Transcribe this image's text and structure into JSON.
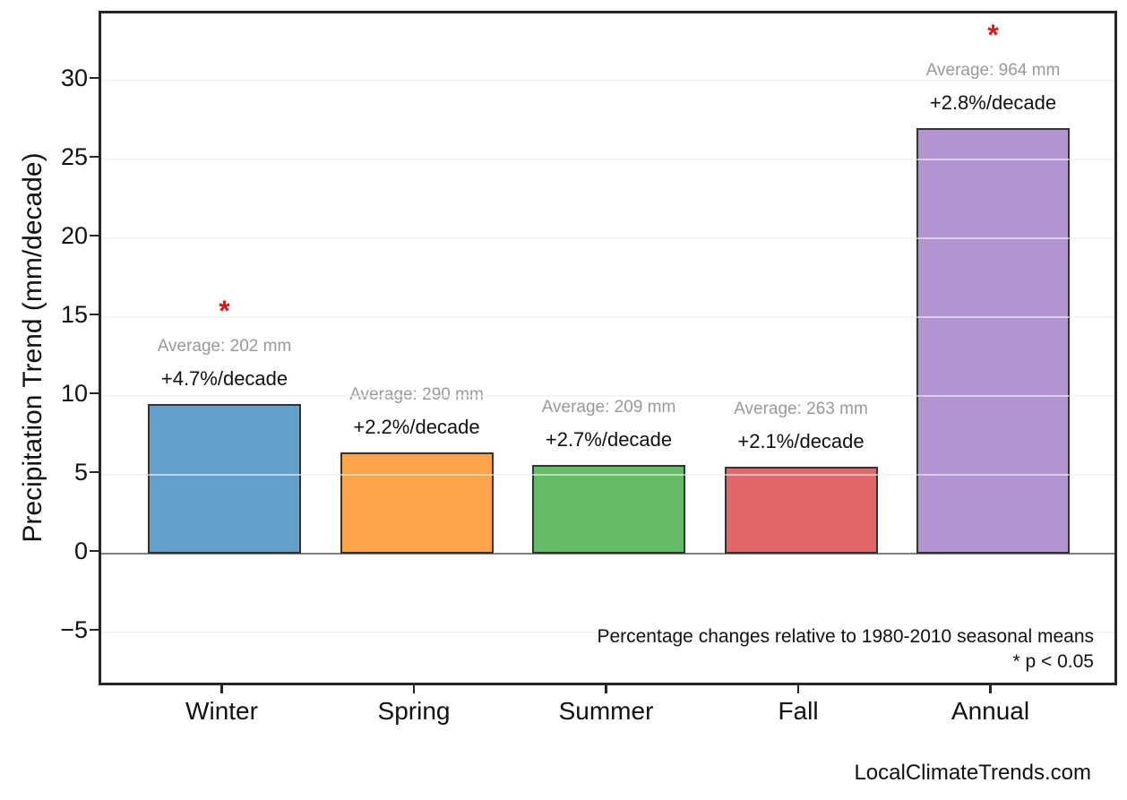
{
  "watermark": "LocalClimateTrends.com",
  "chart_data": {
    "type": "bar",
    "title": "",
    "ylabel": "Precipitation Trend (mm/decade)",
    "categories": [
      "Winter",
      "Spring",
      "Summer",
      "Fall",
      "Annual"
    ],
    "values": [
      9.5,
      6.4,
      5.6,
      5.5,
      27.0
    ],
    "bar_colors": [
      "#62a0cb",
      "#fba44c",
      "#66bb69",
      "#e2676b",
      "#b294d1"
    ],
    "bar_edge_color": "#333333",
    "annotations": [
      {
        "average": "Average: 202 mm",
        "percent": "+4.7%/decade",
        "significant": true
      },
      {
        "average": "Average: 290 mm",
        "percent": "+2.2%/decade",
        "significant": false
      },
      {
        "average": "Average: 209 mm",
        "percent": "+2.7%/decade",
        "significant": false
      },
      {
        "average": "Average: 263 mm",
        "percent": "+2.1%/decade",
        "significant": false
      },
      {
        "average": "Average: 964 mm",
        "percent": "+2.8%/decade",
        "significant": true
      }
    ],
    "significance_marker": "*",
    "marker_color": "#ee1111",
    "annotation_avg_color": "#999999",
    "annotation_pct_color": "#111111",
    "note_line1": "Percentage changes relative to 1980-2010 seasonal means",
    "note_line2": "* p < 0.05",
    "yticks": [
      {
        "label": "30",
        "value": 30
      },
      {
        "label": "25",
        "value": 25
      },
      {
        "label": "20",
        "value": 20
      },
      {
        "label": "15",
        "value": 15
      },
      {
        "label": "10",
        "value": 10
      },
      {
        "label": "5",
        "value": 5
      },
      {
        "label": "0",
        "value": 0
      },
      {
        "label": "−5",
        "value": -5
      }
    ],
    "ylim": [
      -8.5,
      34.3
    ],
    "grid": "horizontal",
    "legend": "none"
  }
}
